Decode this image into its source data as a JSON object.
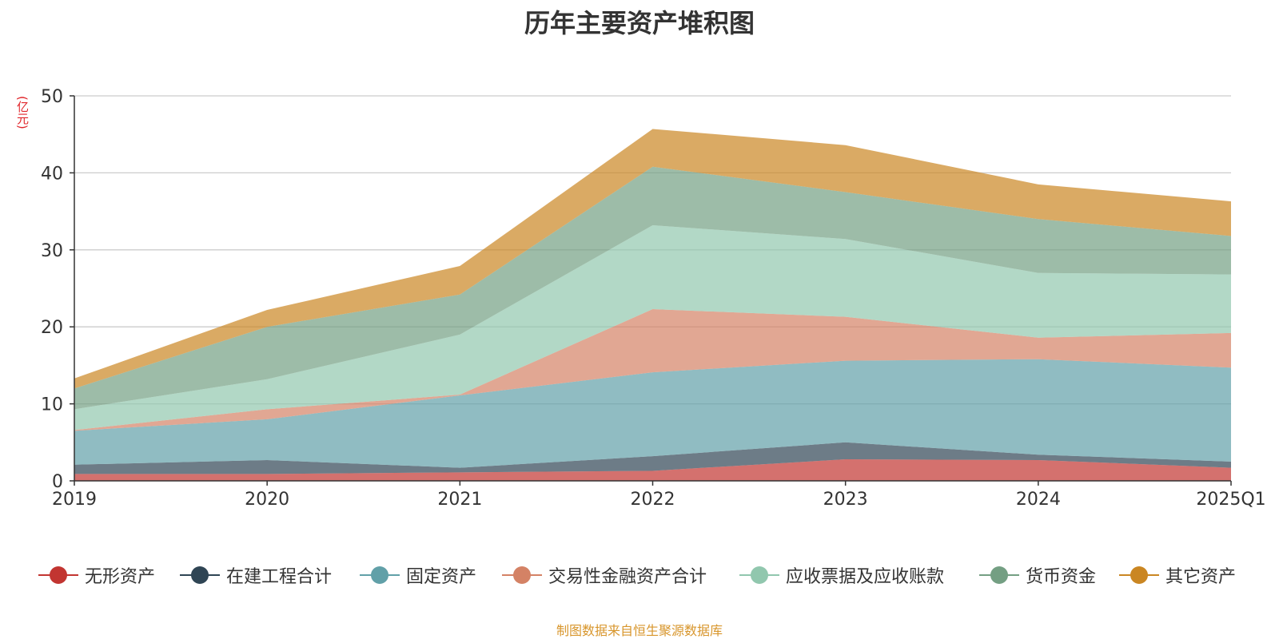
{
  "title": "历年主要资产堆积图",
  "unit": "(亿元)",
  "source": "制图数据来自恒生聚源数据库",
  "chart_data": {
    "type": "area",
    "stacked": true,
    "title": "历年主要资产堆积图",
    "ylabel": "(亿元)",
    "xlabel": "",
    "categories": [
      "2019",
      "2020",
      "2021",
      "2022",
      "2023",
      "2024",
      "2025Q1"
    ],
    "ylim": [
      0,
      50
    ],
    "yticks": [
      0,
      10,
      20,
      30,
      40,
      50
    ],
    "grid": true,
    "legend_position": "bottom",
    "series": [
      {
        "name": "无形资产",
        "color": "#c23531",
        "values": [
          0.9,
          0.9,
          1.1,
          1.3,
          2.8,
          2.7,
          1.7
        ]
      },
      {
        "name": "在建工程合计",
        "color": "#2f4554",
        "values": [
          1.2,
          1.8,
          0.6,
          1.9,
          2.2,
          0.7,
          0.8
        ]
      },
      {
        "name": "固定资产",
        "color": "#61a0a8",
        "values": [
          4.4,
          5.3,
          9.4,
          10.9,
          10.6,
          12.4,
          12.2
        ]
      },
      {
        "name": "交易性金融资产合计",
        "color": "#d48265",
        "values": [
          0.1,
          1.3,
          0.1,
          8.2,
          5.7,
          2.8,
          4.5
        ]
      },
      {
        "name": "应收票据及应收账款",
        "color": "#91c7ae",
        "values": [
          2.7,
          3.9,
          7.8,
          10.9,
          10.1,
          8.4,
          7.6
        ]
      },
      {
        "name": "货币资金",
        "color": "#749f83",
        "values": [
          2.7,
          6.8,
          5.2,
          7.6,
          6.1,
          7.0,
          5.0
        ]
      },
      {
        "name": "其它资产",
        "color": "#ca8622",
        "values": [
          1.3,
          2.2,
          3.7,
          4.9,
          6.1,
          4.5,
          4.5
        ]
      }
    ]
  }
}
